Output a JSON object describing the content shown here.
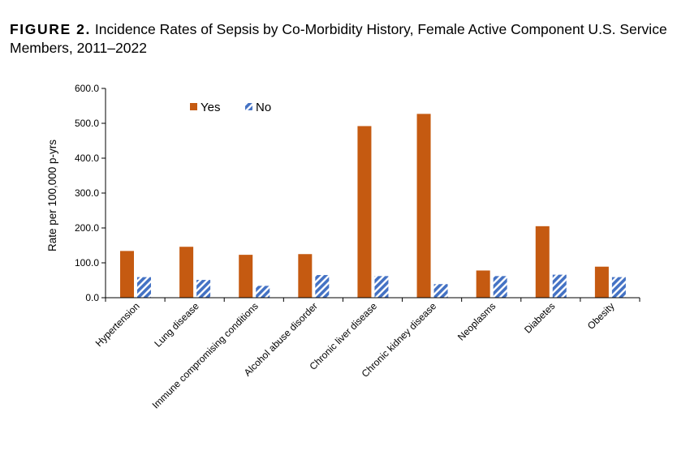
{
  "figure": {
    "label": "FIGURE 2.",
    "title": "Incidence Rates of Sepsis by Co-Morbidity History, Female Active Component U.S. Service Members, 2011–2022"
  },
  "colors": {
    "yes": "#C55A11",
    "no_stripe": "#4472C4",
    "axis": "#000000"
  },
  "chart_data": {
    "type": "bar",
    "ylabel": "Rate per 100,000 p-yrs",
    "ylim": [
      0,
      600
    ],
    "yticks": [
      "0.0",
      "100.0",
      "200.0",
      "300.0",
      "400.0",
      "500.0",
      "600.0"
    ],
    "categories": [
      "Hypertension",
      "Lung disease",
      "Immune compromising conditions",
      "Alcohol abuse disorder",
      "Chronic liver disease",
      "Chronic kidney disease",
      "Neoplasms",
      "Diabetes",
      "Obesity"
    ],
    "series": [
      {
        "name": "Yes",
        "values": [
          134,
          146,
          123,
          125,
          492,
          527,
          78,
          205,
          89
        ]
      },
      {
        "name": "No",
        "values": [
          59,
          51,
          34,
          65,
          62,
          39,
          62,
          66,
          59
        ]
      }
    ],
    "legend_position": "top-left"
  }
}
